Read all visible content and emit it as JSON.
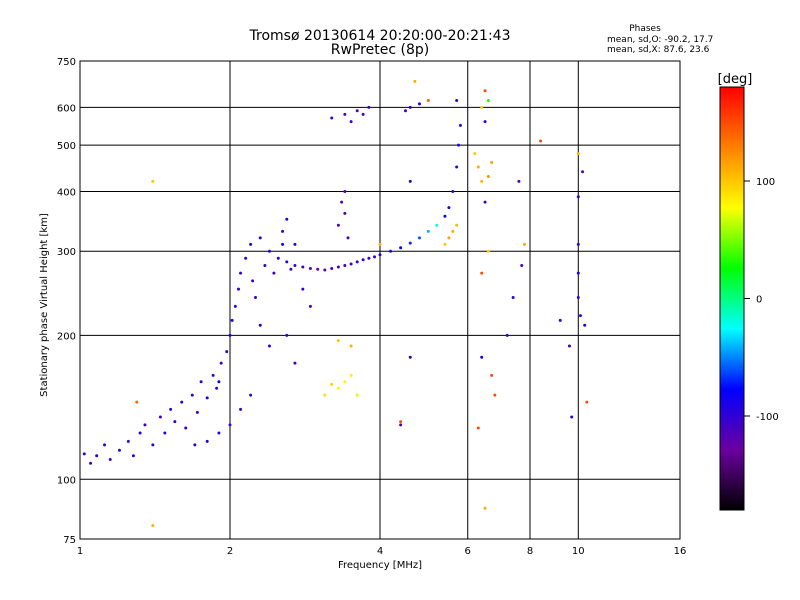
{
  "chart_data": {
    "type": "scatter",
    "title": "Tromsø 20130614 20:20:00-20:21:43",
    "subtitle": "RwPretec (8p)",
    "xlabel": "Frequency [MHz]",
    "ylabel": "Stationary phase Virtual Height [km]",
    "x_scale": "log",
    "y_scale": "log",
    "xlim": [
      1,
      16
    ],
    "ylim": [
      75,
      750
    ],
    "x_ticks": [
      1,
      2,
      4,
      6,
      8,
      10,
      16
    ],
    "y_ticks": [
      75,
      100,
      200,
      300,
      400,
      500,
      600,
      750
    ],
    "grid": true,
    "phases_box": {
      "title": "Phases",
      "line_o": "mean, sd,O: -90.2, 17.7",
      "line_x": "mean, sd,X:  87.6, 23.6"
    },
    "colorbar": {
      "label": "[deg]",
      "range": [
        -180,
        180
      ],
      "ticks": [
        100,
        0,
        -100
      ],
      "colors": [
        "#ff0000",
        "#ff8000",
        "#ffff00",
        "#00ff00",
        "#00ffff",
        "#0000ff",
        "#6a00a0",
        "#000000"
      ]
    },
    "series": [
      {
        "points": [
          [
            1.02,
            113,
            -100
          ],
          [
            1.05,
            108,
            -105
          ],
          [
            1.08,
            112,
            -95
          ],
          [
            1.12,
            118,
            -100
          ],
          [
            1.15,
            110,
            -110
          ],
          [
            1.2,
            115,
            -100
          ],
          [
            1.25,
            120,
            -105
          ],
          [
            1.28,
            112,
            -95
          ],
          [
            1.32,
            125,
            -100
          ],
          [
            1.35,
            130,
            -105
          ],
          [
            1.4,
            118,
            -100
          ],
          [
            1.45,
            135,
            -110
          ],
          [
            1.48,
            125,
            -100
          ],
          [
            1.52,
            140,
            -105
          ],
          [
            1.55,
            132,
            -95
          ],
          [
            1.6,
            145,
            -100
          ],
          [
            1.63,
            128,
            -110
          ],
          [
            1.68,
            150,
            -100
          ],
          [
            1.72,
            138,
            -105
          ],
          [
            1.75,
            160,
            -100
          ],
          [
            1.8,
            148,
            -95
          ],
          [
            1.85,
            165,
            -110
          ],
          [
            1.88,
            155,
            -100
          ],
          [
            1.92,
            175,
            -105
          ],
          [
            1.97,
            185,
            -100
          ],
          [
            2.0,
            200,
            -95
          ],
          [
            2.02,
            215,
            -100
          ],
          [
            2.05,
            230,
            -105
          ],
          [
            2.08,
            250,
            -100
          ],
          [
            2.1,
            270,
            -110
          ],
          [
            2.15,
            290,
            -100
          ],
          [
            2.2,
            310,
            -95
          ],
          [
            2.22,
            260,
            -100
          ],
          [
            2.25,
            240,
            -105
          ],
          [
            2.3,
            320,
            -90
          ],
          [
            2.35,
            280,
            -100
          ],
          [
            2.4,
            300,
            -95
          ],
          [
            2.45,
            270,
            -105
          ],
          [
            2.5,
            290,
            -100
          ],
          [
            2.55,
            310,
            -85
          ],
          [
            2.6,
            285,
            -100
          ],
          [
            2.65,
            275,
            -110
          ],
          [
            2.7,
            280,
            -105
          ],
          [
            2.8,
            278,
            -115
          ],
          [
            2.9,
            276,
            -120
          ],
          [
            3.0,
            275,
            -125
          ],
          [
            3.1,
            274,
            -120
          ],
          [
            3.2,
            276,
            -115
          ],
          [
            3.3,
            278,
            -110
          ],
          [
            3.4,
            280,
            -110
          ],
          [
            3.5,
            282,
            -105
          ],
          [
            3.6,
            285,
            -105
          ],
          [
            3.7,
            288,
            -100
          ],
          [
            3.8,
            290,
            -100
          ],
          [
            3.9,
            292,
            -100
          ],
          [
            4.0,
            295,
            -95
          ],
          [
            4.2,
            300,
            -90
          ],
          [
            4.4,
            305,
            -80
          ],
          [
            4.6,
            312,
            -70
          ],
          [
            4.8,
            320,
            -60
          ],
          [
            5.0,
            330,
            -40
          ],
          [
            5.2,
            340,
            -20
          ],
          [
            5.4,
            355,
            -80
          ],
          [
            5.5,
            370,
            -100
          ],
          [
            5.6,
            400,
            -100
          ],
          [
            5.7,
            450,
            -100
          ],
          [
            5.75,
            500,
            -90
          ],
          [
            5.8,
            550,
            -100
          ],
          [
            5.6,
            330,
            110
          ],
          [
            5.5,
            320,
            115
          ],
          [
            5.7,
            340,
            105
          ],
          [
            5.4,
            310,
            100
          ],
          [
            3.4,
            160,
            80
          ],
          [
            3.3,
            155,
            75
          ],
          [
            3.5,
            165,
            85
          ],
          [
            3.6,
            150,
            70
          ],
          [
            3.2,
            158,
            95
          ],
          [
            3.1,
            150,
            90
          ],
          [
            3.4,
            400,
            -110
          ],
          [
            3.35,
            380,
            -115
          ],
          [
            3.4,
            360,
            -120
          ],
          [
            3.3,
            340,
            -115
          ],
          [
            3.45,
            320,
            -110
          ],
          [
            2.55,
            330,
            -95
          ],
          [
            2.6,
            350,
            -100
          ],
          [
            2.7,
            310,
            -95
          ],
          [
            2.9,
            230,
            -110
          ],
          [
            2.8,
            250,
            -105
          ],
          [
            1.3,
            145,
            140
          ],
          [
            1.9,
            160,
            -80
          ],
          [
            2.3,
            210,
            -90
          ],
          [
            2.4,
            190,
            -100
          ],
          [
            2.6,
            200,
            -95
          ],
          [
            2.7,
            175,
            -105
          ],
          [
            2.2,
            150,
            -100
          ],
          [
            2.1,
            140,
            -105
          ],
          [
            2.0,
            130,
            -110
          ],
          [
            1.9,
            125,
            -100
          ],
          [
            1.8,
            120,
            -95
          ],
          [
            1.7,
            118,
            -100
          ],
          [
            3.8,
            600,
            -110
          ],
          [
            3.7,
            580,
            -115
          ],
          [
            3.6,
            590,
            -120
          ],
          [
            3.5,
            560,
            -110
          ],
          [
            3.4,
            580,
            -115
          ],
          [
            3.2,
            570,
            -110
          ],
          [
            4.6,
            600,
            -100
          ],
          [
            4.8,
            610,
            -95
          ],
          [
            4.5,
            590,
            -105
          ],
          [
            4.7,
            680,
            110
          ],
          [
            5.0,
            620,
            140
          ],
          [
            5.7,
            620,
            -100
          ],
          [
            6.5,
            650,
            150
          ],
          [
            6.6,
            620,
            30
          ],
          [
            6.4,
            600,
            100
          ],
          [
            6.5,
            560,
            -100
          ],
          [
            6.3,
            450,
            110
          ],
          [
            6.6,
            430,
            120
          ],
          [
            6.4,
            420,
            105
          ],
          [
            6.5,
            380,
            -110
          ],
          [
            6.2,
            480,
            100
          ],
          [
            6.7,
            460,
            115
          ],
          [
            6.6,
            300,
            100
          ],
          [
            6.4,
            270,
            150
          ],
          [
            8.4,
            510,
            150
          ],
          [
            7.6,
            420,
            -110
          ],
          [
            7.8,
            310,
            110
          ],
          [
            7.4,
            240,
            -100
          ],
          [
            7.7,
            280,
            -110
          ],
          [
            7.2,
            200,
            -100
          ],
          [
            10.0,
            480,
            110
          ],
          [
            10.0,
            390,
            -100
          ],
          [
            10.0,
            310,
            -100
          ],
          [
            10.0,
            270,
            -95
          ],
          [
            10.0,
            240,
            -100
          ],
          [
            10.1,
            220,
            -110
          ],
          [
            10.2,
            440,
            -120
          ],
          [
            9.6,
            190,
            -110
          ],
          [
            9.7,
            135,
            -100
          ],
          [
            10.4,
            145,
            150
          ],
          [
            9.2,
            215,
            -100
          ],
          [
            10.3,
            210,
            -90
          ],
          [
            6.4,
            180,
            -90
          ],
          [
            6.7,
            165,
            150
          ],
          [
            6.8,
            150,
            150
          ],
          [
            6.3,
            128,
            150
          ],
          [
            4.4,
            132,
            150
          ],
          [
            4.6,
            180,
            -95
          ],
          [
            4.6,
            420,
            -100
          ],
          [
            4.4,
            130,
            -110
          ],
          [
            4.0,
            310,
            110
          ],
          [
            3.5,
            190,
            110
          ],
          [
            3.3,
            195,
            100
          ],
          [
            6.5,
            87,
            110
          ],
          [
            1.4,
            80,
            110
          ],
          [
            1.4,
            420,
            100
          ]
        ]
      }
    ]
  }
}
